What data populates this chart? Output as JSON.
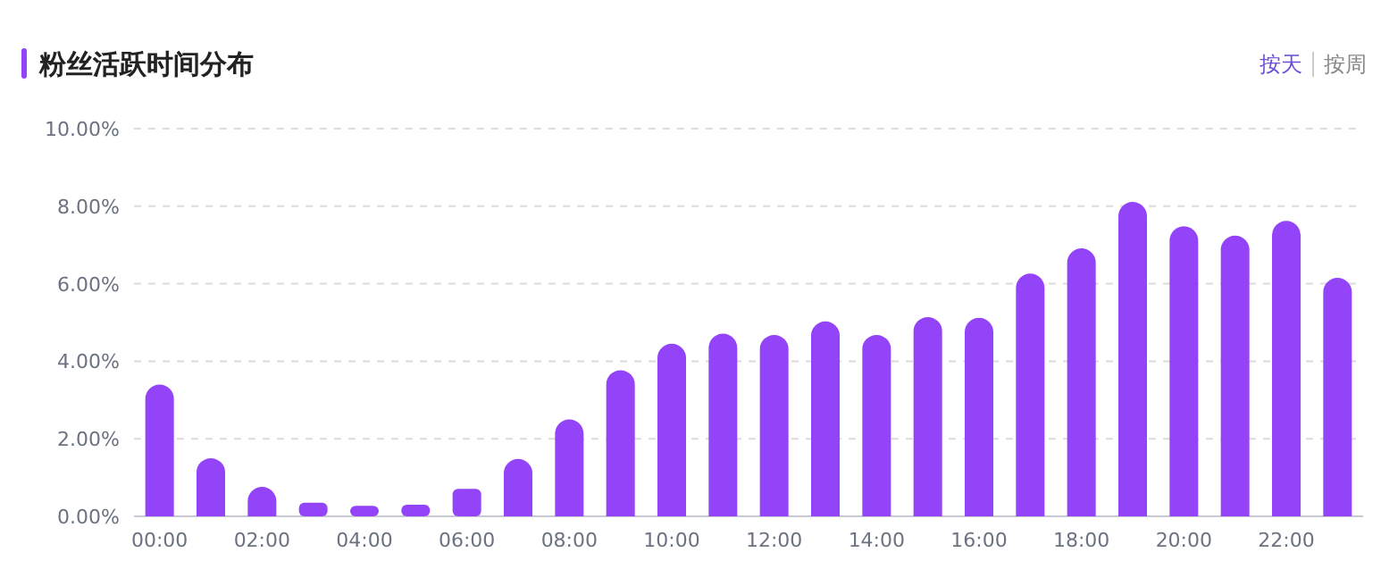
{
  "chart_data": {
    "type": "bar",
    "title": "粉丝活跃时间分布",
    "annotations": [
      "按天",
      "按周"
    ],
    "categories": [
      "00:00",
      null,
      "02:00",
      null,
      "04:00",
      null,
      "06:00",
      null,
      "08:00",
      null,
      "10:00",
      null,
      "12:00",
      null,
      "14:00",
      null,
      "16:00",
      null,
      "18:00",
      null,
      "20:00",
      null,
      "22:00",
      null
    ],
    "values": [
      3.4,
      1.5,
      0.76,
      0.35,
      0.27,
      0.3,
      0.71,
      1.48,
      2.5,
      3.77,
      4.45,
      4.71,
      4.68,
      5.03,
      4.68,
      5.14,
      5.12,
      6.26,
      6.91,
      8.11,
      7.48,
      7.24,
      7.62,
      6.15
    ],
    "color": "#9343f8",
    "ylim": [
      0,
      10
    ],
    "yticks": [
      {
        "value": 0,
        "label": "0.00%"
      },
      {
        "value": 2,
        "label": "2.00%"
      },
      {
        "value": 4,
        "label": "4.00%"
      },
      {
        "value": 6,
        "label": "6.00%"
      },
      {
        "value": 8,
        "label": "8.00%"
      },
      {
        "value": 10,
        "label": "10.00%"
      }
    ],
    "grid": "y"
  }
}
